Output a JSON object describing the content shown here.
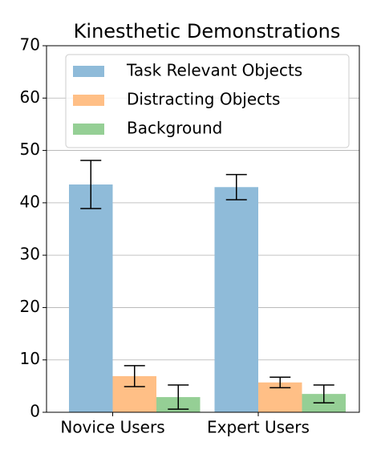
{
  "chart_data": {
    "type": "bar",
    "title": "Kinesthetic Demonstrations",
    "categories": [
      "Novice Users",
      "Expert Users"
    ],
    "series": [
      {
        "name": "Task Relevant Objects",
        "color": "#8fbbd9",
        "values": [
          43.5,
          43.0
        ],
        "errors": [
          4.6,
          2.4
        ]
      },
      {
        "name": "Distracting Objects",
        "color": "#ffbf86",
        "values": [
          6.9,
          5.7
        ],
        "errors": [
          2.0,
          1.0
        ]
      },
      {
        "name": "Background",
        "color": "#95cf95",
        "values": [
          2.9,
          3.5
        ],
        "errors": [
          2.3,
          1.7
        ]
      }
    ],
    "ylim": [
      0,
      70
    ],
    "yticks": [
      0,
      10,
      20,
      30,
      40,
      50,
      60,
      70
    ],
    "grid": true,
    "legend": "upper left"
  }
}
